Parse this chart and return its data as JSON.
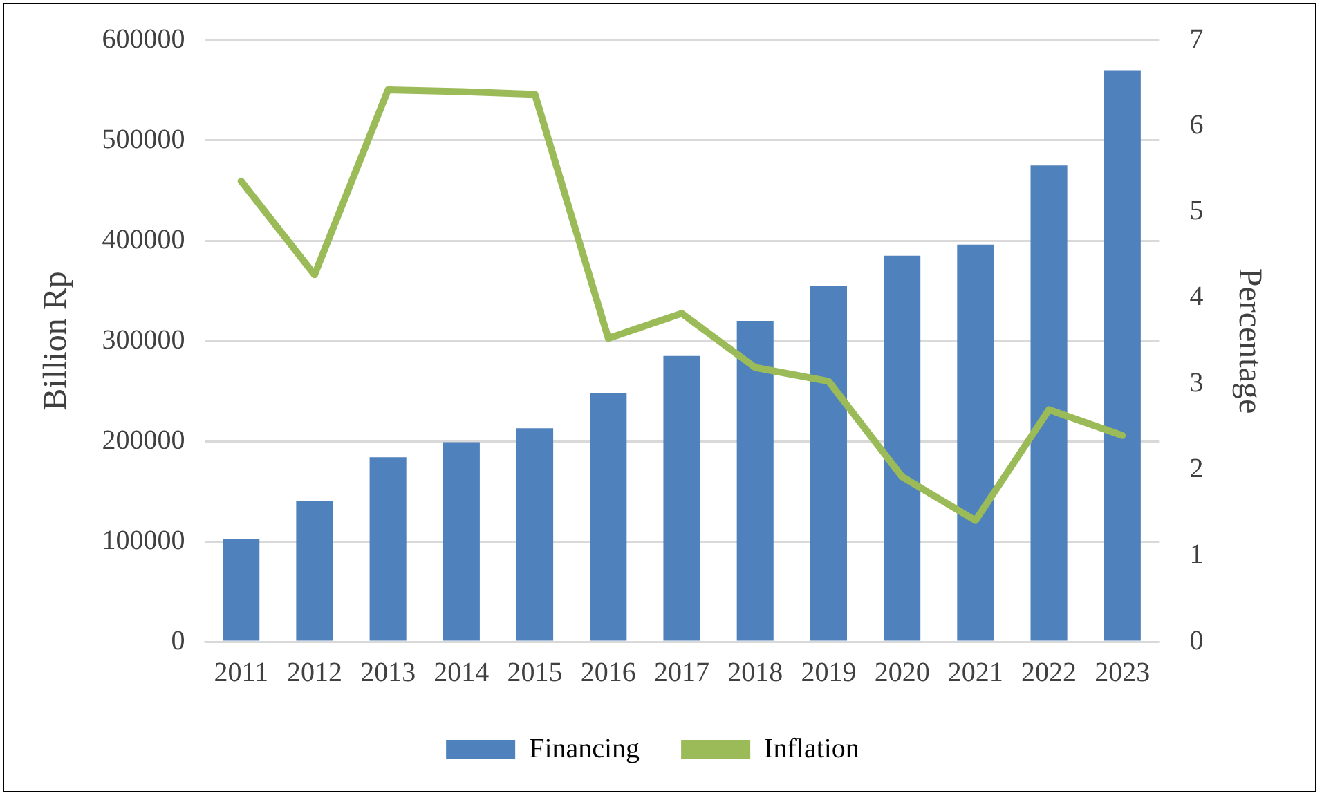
{
  "chart_data": {
    "type": "bar",
    "ylabel": "Billion Rp",
    "y2label": "Percentage",
    "categories": [
      "2011",
      "2012",
      "2013",
      "2014",
      "2015",
      "2016",
      "2017",
      "2018",
      "2019",
      "2020",
      "2021",
      "2022",
      "2023"
    ],
    "series": [
      {
        "name": "Financing",
        "color": "#4f81bd",
        "values": [
          102000,
          140000,
          184000,
          199000,
          213000,
          248000,
          285000,
          320000,
          355000,
          385000,
          396000,
          475000,
          570000
        ]
      },
      {
        "name": "Inflation",
        "type": "line",
        "axis": "y2",
        "color": "#9bbb59",
        "marker": "none",
        "values": [
          5.36,
          4.27,
          6.42,
          6.4,
          6.37,
          3.53,
          3.82,
          3.19,
          3.03,
          1.92,
          1.41,
          2.7,
          2.4
        ]
      }
    ],
    "ylim": [
      0,
      600000
    ],
    "yticks": [
      0,
      100000,
      200000,
      300000,
      400000,
      500000,
      600000
    ],
    "y2lim": [
      0,
      7
    ],
    "y2ticks": [
      0,
      1,
      2,
      3,
      4,
      5,
      6,
      7
    ],
    "grid": "y",
    "legend": "bottom"
  }
}
